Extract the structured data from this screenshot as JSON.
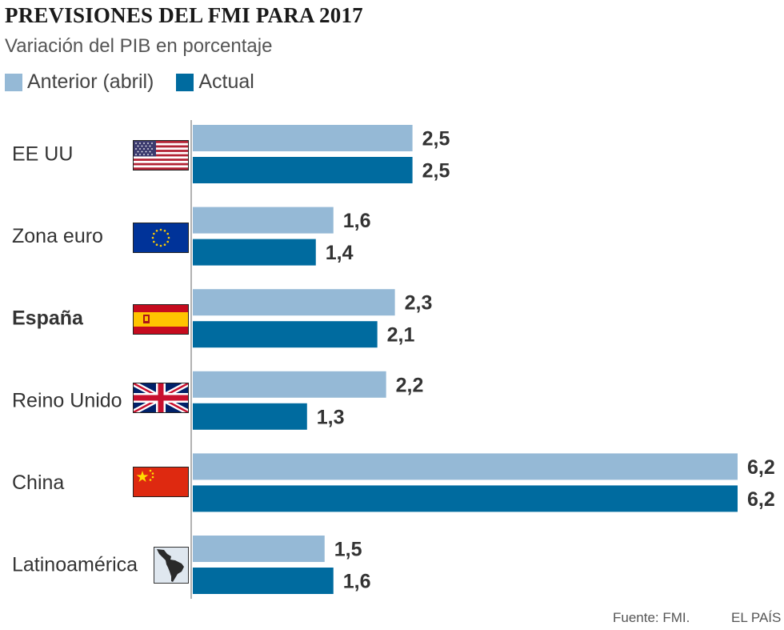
{
  "title": "PREVISIONES DEL FMI PARA 2017",
  "subtitle": "Variación del PIB en porcentaje",
  "footer": {
    "source": "Fuente: FMI.",
    "brand": "EL PAÍS"
  },
  "colors": {
    "anterior": "#95b9d6",
    "actual": "#006b9f",
    "axis": "#999999",
    "text": "#333333"
  },
  "chart_data": {
    "type": "bar",
    "orientation": "horizontal",
    "title": "PREVISIONES DEL FMI PARA 2017",
    "subtitle": "Variación del PIB en porcentaje",
    "categories": [
      "EE UU",
      "Zona euro",
      "España",
      "Reino Unido",
      "China",
      "Latinoamérica"
    ],
    "highlight": "España",
    "series": [
      {
        "name": "Anterior (abril)",
        "values": [
          2.5,
          1.6,
          2.3,
          2.2,
          6.2,
          1.5
        ],
        "labels": [
          "2,5",
          "1,6",
          "2,3",
          "2,2",
          "6,2",
          "1,5"
        ]
      },
      {
        "name": "Actual",
        "values": [
          2.5,
          1.4,
          2.1,
          1.3,
          6.2,
          1.6
        ],
        "labels": [
          "2,5",
          "1,4",
          "2,1",
          "1,3",
          "6,2",
          "1,6"
        ]
      }
    ],
    "flags": [
      "us-flag-icon",
      "eu-flag-icon",
      "spain-flag-icon",
      "uk-flag-icon",
      "china-flag-icon",
      "latin-america-map-icon"
    ],
    "xlim": [
      0,
      6.2
    ],
    "grid": false,
    "legend": "top-left"
  }
}
